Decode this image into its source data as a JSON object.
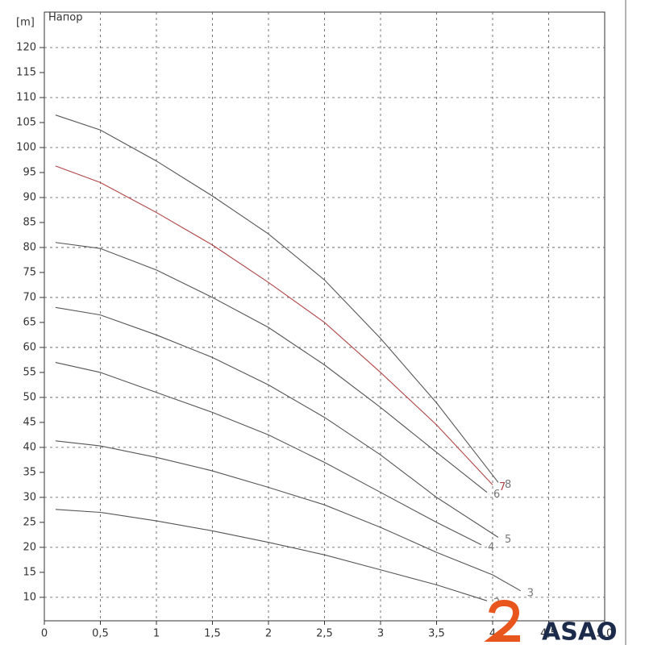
{
  "chart_data": {
    "type": "line",
    "title": "Напор",
    "ylabel": "[m]",
    "xlim": [
      0,
      5
    ],
    "ylim": [
      5.3,
      127.1
    ],
    "xticks": [
      0,
      {
        "value": 0.5,
        "label": "0,5"
      },
      1,
      {
        "value": 1.5,
        "label": "1,5"
      },
      2,
      {
        "value": 2.5,
        "label": "2,5"
      },
      3,
      {
        "value": 3.5,
        "label": "3,5"
      },
      4,
      {
        "value": 4.5,
        "label": "4,5"
      },
      {
        "value": 5,
        "label": "5,0"
      }
    ],
    "yticks": [
      10,
      15,
      20,
      25,
      30,
      35,
      40,
      45,
      50,
      55,
      60,
      65,
      70,
      75,
      80,
      85,
      90,
      95,
      100,
      105,
      110,
      115,
      120
    ],
    "grid": true,
    "series": [
      {
        "name": "2",
        "color": "#555555",
        "x": [
          0.1,
          0.5,
          1,
          1.5,
          2,
          2.5,
          3,
          3.5,
          3.95
        ],
        "values": [
          27.6,
          27,
          25.3,
          23.3,
          21,
          18.5,
          15.5,
          12.5,
          9.3
        ]
      },
      {
        "name": "3",
        "color": "#555555",
        "x": [
          0.1,
          0.5,
          1,
          1.5,
          2,
          2.5,
          3,
          3.5,
          4,
          4.25
        ],
        "values": [
          41.3,
          40.3,
          38,
          35.3,
          32,
          28.5,
          24,
          19,
          14.5,
          11.3
        ]
      },
      {
        "name": "4",
        "color": "#555555",
        "x": [
          0.1,
          0.5,
          1,
          1.5,
          2,
          2.5,
          3,
          3.5,
          3.9
        ],
        "values": [
          57,
          55,
          51,
          47,
          42.5,
          37,
          31,
          25,
          20.5
        ]
      },
      {
        "name": "5",
        "color": "#555555",
        "x": [
          0.1,
          0.5,
          1,
          1.5,
          2,
          2.5,
          3,
          3.5,
          4.05
        ],
        "values": [
          68,
          66.5,
          62.5,
          58,
          52.5,
          46,
          38.5,
          30,
          22
        ]
      },
      {
        "name": "6",
        "color": "#555555",
        "x": [
          0.1,
          0.5,
          1,
          1.5,
          2,
          2.5,
          3,
          3.5,
          3.95
        ],
        "values": [
          81,
          79.8,
          75.5,
          70,
          64,
          56.5,
          48,
          39,
          31
        ]
      },
      {
        "name": "7",
        "color": "#b04545",
        "x": [
          0.1,
          0.5,
          1,
          1.5,
          2,
          2.5,
          3,
          3.5,
          4
        ],
        "values": [
          96.3,
          93,
          87,
          80.5,
          73,
          65,
          55,
          44.5,
          32.5
        ]
      },
      {
        "name": "8",
        "color": "#555555",
        "x": [
          0.1,
          0.5,
          1,
          1.5,
          2,
          2.5,
          3,
          3.5,
          4.05
        ],
        "values": [
          106.5,
          103.5,
          97.3,
          90.3,
          82.7,
          73.5,
          61.8,
          48.9,
          33
        ]
      }
    ]
  },
  "watermark": "ASAO"
}
